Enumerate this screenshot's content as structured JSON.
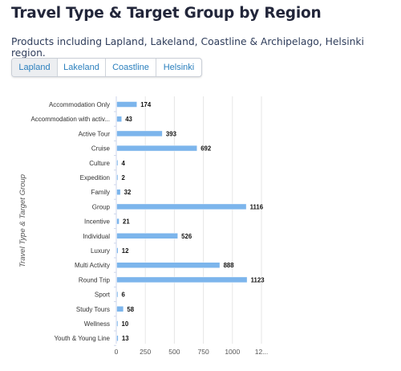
{
  "header": {
    "title": "Travel Type & Target Group by Region",
    "subtitle": "Products including Lapland, Lakeland, Coastline & Archipelago, Helsinki region."
  },
  "tabs": [
    {
      "label": "Lapland",
      "active": true
    },
    {
      "label": "Lakeland",
      "active": false
    },
    {
      "label": "Coastline",
      "active": false
    },
    {
      "label": "Helsinki",
      "active": false
    }
  ],
  "colors": {
    "bar": "#7cb5ec",
    "tab_text": "#2a7fbd",
    "title": "#22263a"
  },
  "chart_data": {
    "type": "bar",
    "orientation": "horizontal",
    "ylabel": "Travel Type & Target Group",
    "xlabel": "",
    "xlim": [
      0,
      1250
    ],
    "x_ticks": [
      "0",
      "250",
      "500",
      "750",
      "1000",
      "12..."
    ],
    "grid": true,
    "categories": [
      "Accommodation Only",
      "Accommodation with activ...",
      "Active Tour",
      "Cruise",
      "Culture",
      "Expedition",
      "Family",
      "Group",
      "Incentive",
      "Individual",
      "Luxury",
      "Multi Activity",
      "Round Trip",
      "Sport",
      "Study Tours",
      "Wellness",
      "Youth & Young Line"
    ],
    "values": [
      174,
      43,
      393,
      692,
      4,
      2,
      32,
      1116,
      21,
      526,
      12,
      888,
      1123,
      6,
      58,
      10,
      13
    ]
  }
}
